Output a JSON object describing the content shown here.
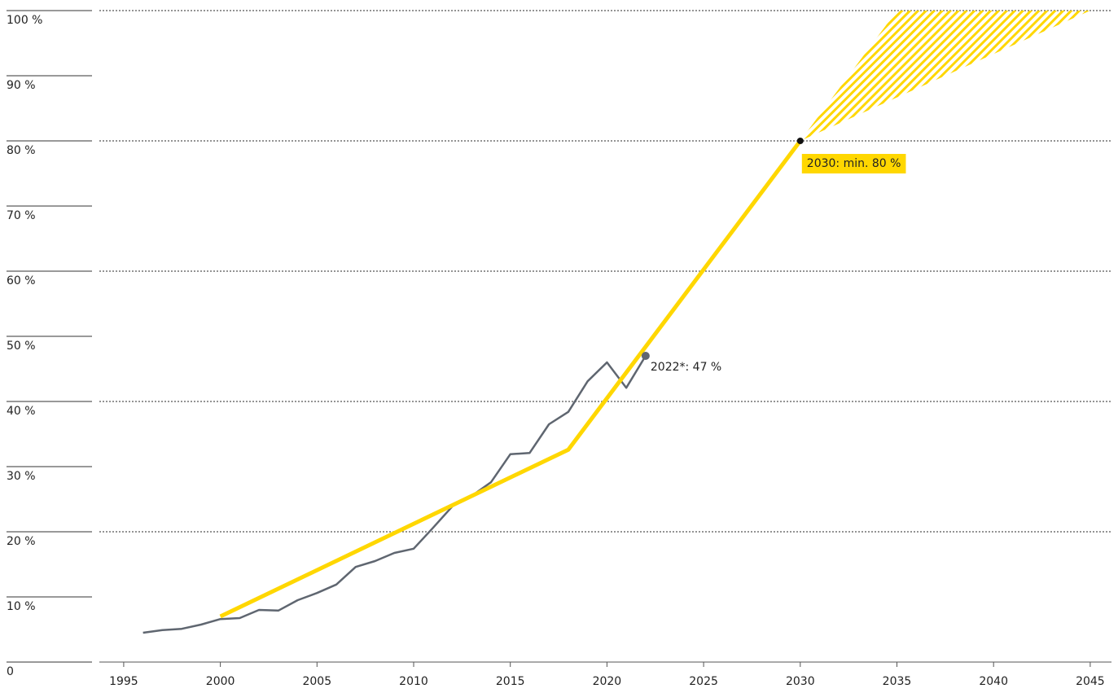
{
  "chart_data": {
    "type": "line",
    "xlim": [
      1993.74,
      2046.1
    ],
    "ylim": [
      0,
      100
    ],
    "xticks": [
      1995,
      2000,
      2005,
      2010,
      2015,
      2020,
      2025,
      2030,
      2035,
      2040,
      2045
    ],
    "yticks": [
      0,
      {
        "value": 10,
        "label": "10 %"
      },
      {
        "value": 20,
        "label": "20 %"
      },
      {
        "value": 30,
        "label": "30 %"
      },
      {
        "value": 40,
        "label": "40 %"
      },
      {
        "value": 50,
        "label": "50 %"
      },
      {
        "value": 60,
        "label": "60 %"
      },
      {
        "value": 70,
        "label": "70 %"
      },
      {
        "value": 80,
        "label": "80 %"
      },
      {
        "value": 90,
        "label": "90 %"
      },
      {
        "value": 100,
        "label": "100 %"
      }
    ],
    "grid": true,
    "series": [
      {
        "color": "#5f6670",
        "x": [
          1996,
          1997,
          1998,
          1999,
          2000,
          2001,
          2002,
          2003,
          2004,
          2005,
          2006,
          2007,
          2008,
          2009,
          2010,
          2011,
          2012,
          2013,
          2014,
          2015,
          2016,
          2017,
          2018,
          2019,
          2020,
          2021,
          2022
        ],
        "values": [
          4.5,
          4.9,
          5.1,
          5.75,
          6.6,
          6.75,
          8.0,
          7.9,
          9.5,
          10.6,
          11.9,
          14.6,
          15.5,
          16.75,
          17.4,
          20.6,
          23.9,
          25.5,
          27.6,
          31.9,
          32.1,
          36.5,
          38.4,
          43.1,
          46.0,
          42.1,
          47
        ]
      },
      {
        "color": "#ffd700",
        "x": [
          2000,
          2018,
          2030
        ],
        "values": [
          7,
          32.6,
          80
        ]
      }
    ],
    "corridor": {
      "color": "#ffd700",
      "x": [
        2030,
        2035,
        2045
      ],
      "values": [
        80,
        100,
        100
      ]
    },
    "annotations": [
      "2030: min. 80 %",
      "2022*: 47 %"
    ]
  }
}
